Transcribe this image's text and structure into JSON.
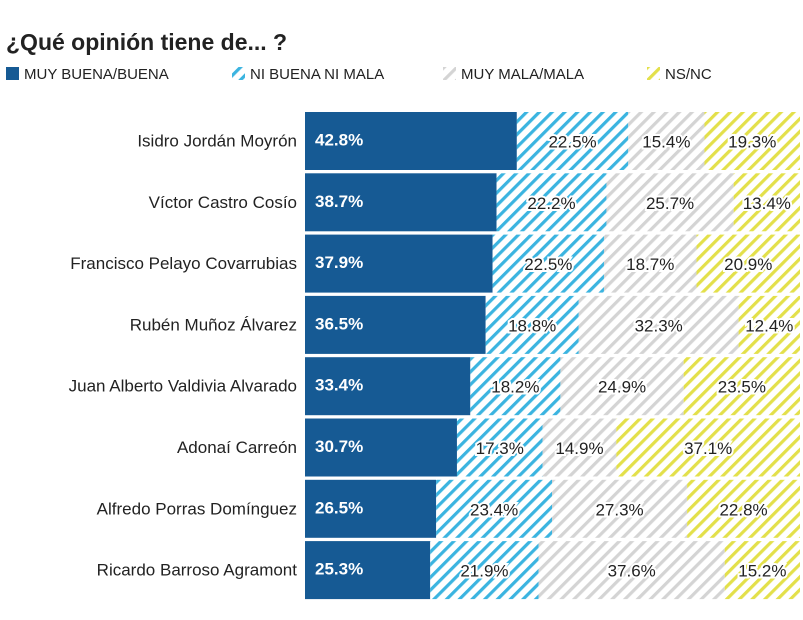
{
  "chart_data": {
    "type": "stacked-bar",
    "orientation": "horizontal",
    "title": "¿Qué opinión tiene de... ?",
    "categories": [
      "Isidro Jordán Moyrón",
      "Víctor Castro Cosío",
      "Francisco Pelayo Covarrubias",
      "Rubén Muñoz Álvarez",
      "Juan Alberto Valdivia Alvarado",
      "Adonaí Carreón",
      "Alfredo Porras Domínguez",
      "Ricardo Barroso Agramont"
    ],
    "xlim": [
      0,
      100
    ],
    "series": [
      {
        "name": "MUY BUENA/BUENA",
        "color": "#165a94",
        "hatch": false,
        "values": [
          42.8,
          38.7,
          37.9,
          36.5,
          33.4,
          30.7,
          26.5,
          25.3
        ],
        "value_labels": [
          "42.8%",
          "38.7%",
          "37.9%",
          "36.5%",
          "33.4%",
          "30.7%",
          "26.5%",
          "25.3%"
        ]
      },
      {
        "name": "NI BUENA NI MALA",
        "color": "#3bb4e0",
        "hatch": true,
        "values": [
          22.5,
          22.2,
          22.5,
          18.8,
          18.2,
          17.3,
          23.4,
          21.9
        ],
        "value_labels": [
          "22.5%",
          "22.2%",
          "22.5%",
          "18.8%",
          "18.2%",
          "17.3%",
          "23.4%",
          "21.9%"
        ]
      },
      {
        "name": "MUY MALA/MALA",
        "color": "#d4d4d4",
        "hatch": true,
        "values": [
          15.4,
          25.7,
          18.7,
          32.3,
          24.9,
          14.9,
          27.3,
          37.6
        ],
        "value_labels": [
          "15.4%",
          "25.7%",
          "18.7%",
          "32.3%",
          "24.9%",
          "14.9%",
          "27.3%",
          "37.6%"
        ]
      },
      {
        "name": "NS/NC",
        "color": "#e3e04a",
        "hatch": true,
        "values": [
          19.3,
          13.4,
          20.9,
          12.4,
          23.5,
          37.1,
          22.8,
          15.2
        ],
        "value_labels": [
          "19.3%",
          "13.4%",
          "20.9%",
          "12.4%",
          "23.5%",
          "37.1%",
          "22.8%",
          "15.2%"
        ]
      }
    ]
  }
}
